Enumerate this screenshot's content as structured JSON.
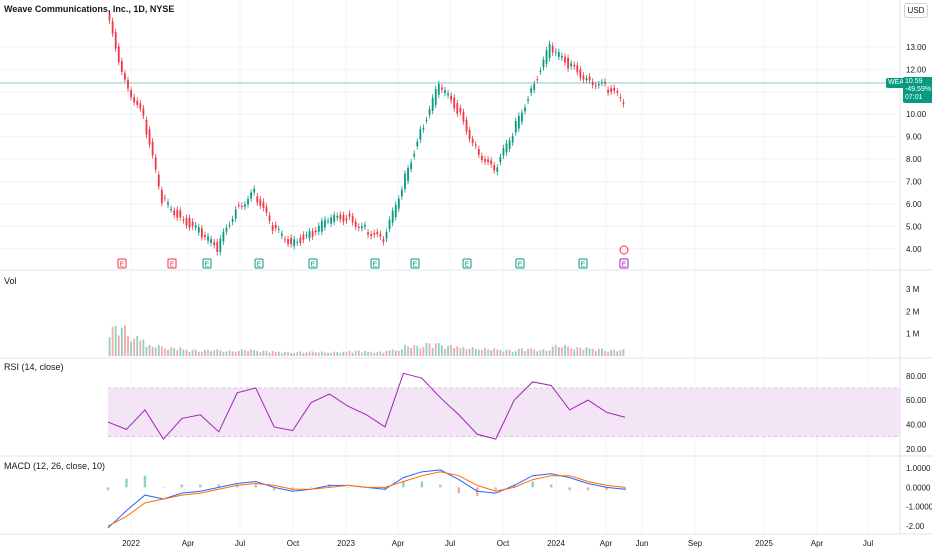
{
  "header": {
    "title": "Weave Communications, Inc., 1D, NYSE",
    "currency_button": "USD"
  },
  "price_tag": {
    "symbol": "WEAV",
    "price": "10.59",
    "change": "-49.59%",
    "countdown": "07:01"
  },
  "price_axis": [
    "13.00",
    "12.00",
    "11.00",
    "10.00",
    "9.00",
    "8.00",
    "7.00",
    "6.00",
    "5.00",
    "4.00"
  ],
  "volume_pane": {
    "label": "Vol",
    "axis": [
      "3 M",
      "2 M",
      "1 M"
    ]
  },
  "rsi_pane": {
    "label": "RSI (14, close)",
    "axis": [
      "80.00",
      "60.00",
      "40.00",
      "20.00"
    ]
  },
  "macd_pane": {
    "label": "MACD (12, 26, close, 10)",
    "axis": [
      "1.0000",
      "0.0000",
      "-1.0000",
      "-2.00"
    ]
  },
  "time_axis": [
    "2022",
    "Apr",
    "Jul",
    "Oct",
    "2023",
    "Apr",
    "Jul",
    "Oct",
    "2024",
    "Apr",
    "Jun",
    "Sep",
    "2025",
    "Apr",
    "Jul"
  ],
  "earnings_markers": [
    "E",
    "E",
    "E",
    "E",
    "E",
    "E",
    "E",
    "E",
    "E",
    "E",
    "E"
  ],
  "colors": {
    "up": "#089981",
    "down": "#f23645",
    "rsi": "#9c27b0",
    "rsi_band": "#f3e5f5",
    "macd": "#2962ff",
    "signal": "#ff6d00"
  },
  "chart_data": {
    "type": "candlestick",
    "title": "Weave Communications, Inc., 1D, NYSE",
    "ylim": [
      3.5,
      14.2
    ],
    "x": [
      "2022-01",
      "2022-02",
      "2022-03",
      "2022-04",
      "2022-05",
      "2022-06",
      "2022-07",
      "2022-08",
      "2022-09",
      "2022-10",
      "2022-11",
      "2022-12",
      "2023-01",
      "2023-02",
      "2023-03",
      "2023-04",
      "2023-05",
      "2023-06",
      "2023-07",
      "2023-08",
      "2023-09",
      "2023-10",
      "2023-11",
      "2023-12",
      "2024-01",
      "2024-02",
      "2024-03",
      "2024-04",
      "2024-05"
    ],
    "close": [
      14.5,
      11.5,
      9.8,
      6.2,
      5.4,
      4.8,
      4.0,
      5.8,
      6.5,
      4.9,
      4.3,
      4.6,
      5.3,
      5.4,
      4.9,
      4.3,
      6.8,
      9.2,
      11.3,
      10.2,
      8.5,
      7.4,
      9.2,
      11.1,
      13.0,
      12.2,
      11.6,
      11.2,
      10.59
    ],
    "volume": [
      1.4,
      0.9,
      0.5,
      0.4,
      0.3,
      0.3,
      0.25,
      0.3,
      0.25,
      0.2,
      0.2,
      0.2,
      0.2,
      0.25,
      0.2,
      0.3,
      0.5,
      0.6,
      0.5,
      0.4,
      0.35,
      0.3,
      0.35,
      0.3,
      0.5,
      0.4,
      0.35,
      0.3,
      0.2
    ],
    "rsi": [
      42,
      36,
      52,
      28,
      45,
      48,
      34,
      66,
      70,
      38,
      35,
      58,
      65,
      55,
      48,
      38,
      82,
      78,
      62,
      48,
      32,
      28,
      60,
      75,
      72,
      52,
      60,
      50,
      46
    ],
    "macd": [
      -2.1,
      -1.2,
      -0.4,
      -0.6,
      -0.3,
      -0.2,
      0.0,
      0.2,
      0.3,
      0.0,
      -0.2,
      -0.1,
      0.1,
      0.1,
      0.0,
      -0.1,
      0.5,
      0.8,
      0.9,
      0.4,
      -0.2,
      -0.3,
      0.1,
      0.6,
      0.7,
      0.5,
      0.2,
      0.0,
      -0.1
    ],
    "signal": [
      -2.0,
      -1.5,
      -0.8,
      -0.6,
      -0.4,
      -0.3,
      -0.1,
      0.1,
      0.2,
      0.1,
      -0.1,
      -0.1,
      0.0,
      0.1,
      0.0,
      0.0,
      0.3,
      0.6,
      0.8,
      0.6,
      0.1,
      -0.2,
      0.0,
      0.4,
      0.6,
      0.6,
      0.3,
      0.1,
      0.0
    ]
  }
}
